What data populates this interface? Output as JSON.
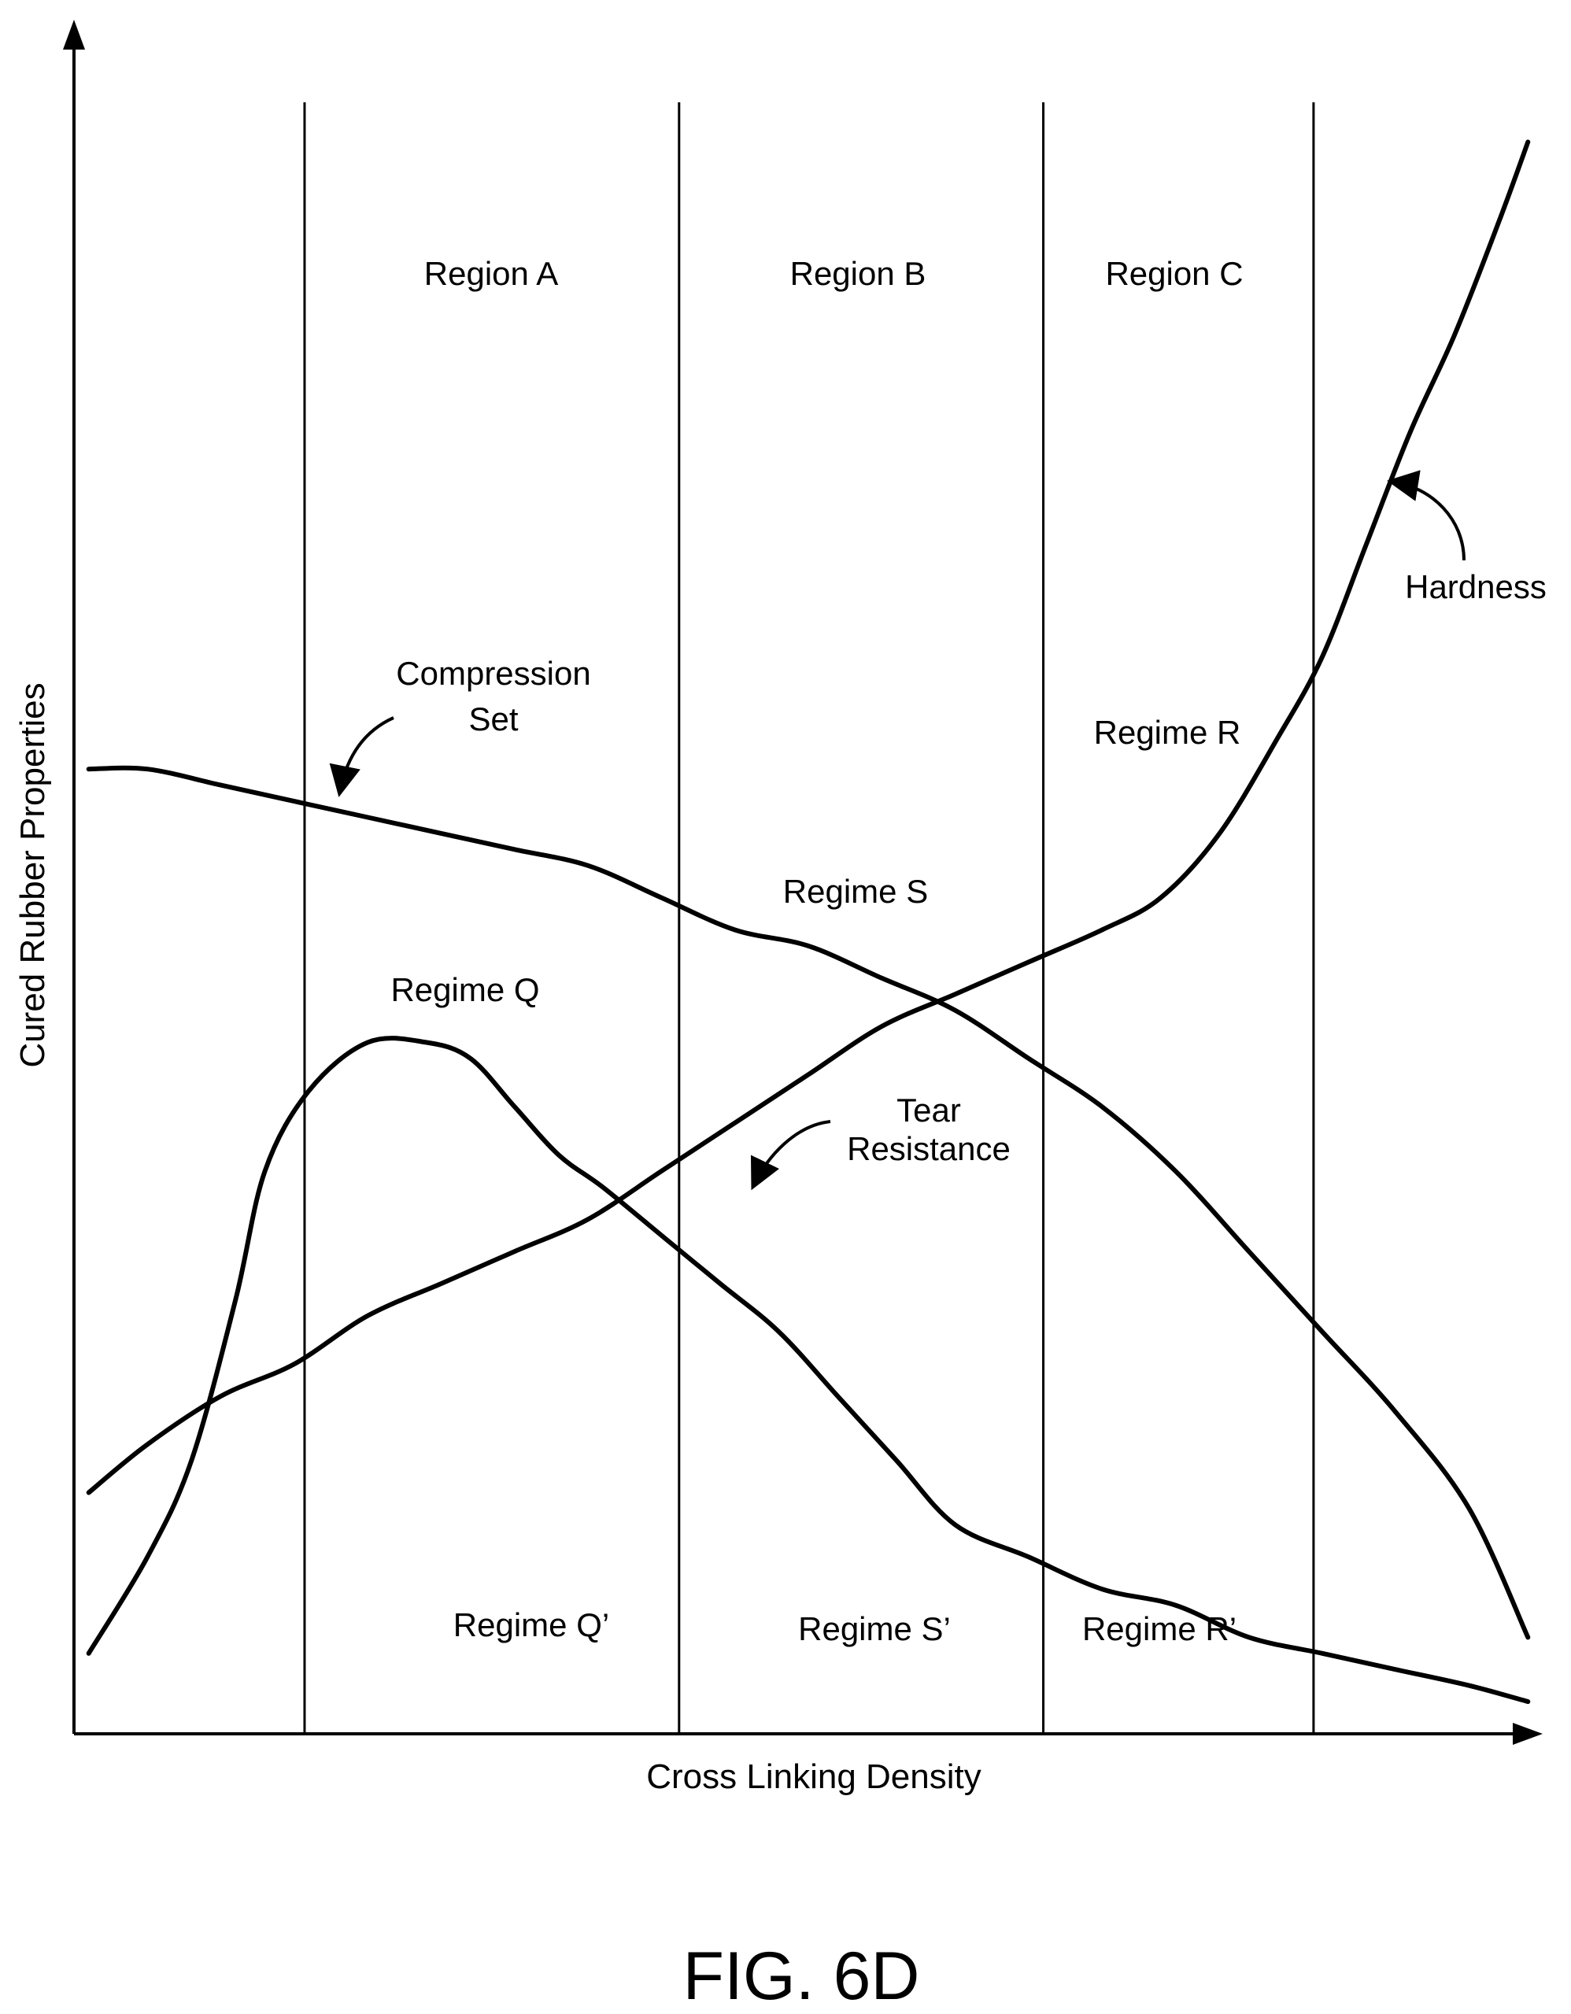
{
  "figure_caption": "FIG. 6D",
  "chart_data": {
    "type": "line",
    "xlabel": "Cross Linking Density",
    "ylabel": "Cured Rubber Properties",
    "region_labels": [
      "Region A",
      "Region B",
      "Region C"
    ],
    "regime_labels_upper": [
      "Regime Q",
      "Regime S",
      "Regime R"
    ],
    "regime_labels_lower": [
      "Regime Q’",
      "Regime S’",
      "Regime R’"
    ],
    "series": [
      {
        "name": "Compression Set",
        "name_lines": [
          "Compression",
          "Set"
        ],
        "x": [
          0.01,
          0.05,
          0.1,
          0.15,
          0.2,
          0.25,
          0.3,
          0.35,
          0.4,
          0.45,
          0.5,
          0.55,
          0.6,
          0.65,
          0.7,
          0.75,
          0.8,
          0.85,
          0.9,
          0.95,
          0.99
        ],
        "y": [
          0.6,
          0.6,
          0.59,
          0.58,
          0.57,
          0.56,
          0.55,
          0.54,
          0.52,
          0.5,
          0.49,
          0.47,
          0.45,
          0.42,
          0.39,
          0.35,
          0.3,
          0.25,
          0.2,
          0.14,
          0.06
        ]
      },
      {
        "name": "Tear Resistance",
        "name_lines": [
          "Tear",
          "Resistance"
        ],
        "x": [
          0.01,
          0.05,
          0.08,
          0.11,
          0.13,
          0.16,
          0.2,
          0.24,
          0.27,
          0.3,
          0.33,
          0.36,
          0.4,
          0.44,
          0.48,
          0.52,
          0.56,
          0.6,
          0.65,
          0.7,
          0.75,
          0.8,
          0.85,
          0.9,
          0.95,
          0.99
        ],
        "y": [
          0.05,
          0.11,
          0.17,
          0.27,
          0.35,
          0.4,
          0.43,
          0.43,
          0.42,
          0.39,
          0.36,
          0.34,
          0.31,
          0.28,
          0.25,
          0.21,
          0.17,
          0.13,
          0.11,
          0.09,
          0.08,
          0.06,
          0.05,
          0.04,
          0.03,
          0.02
        ]
      },
      {
        "name": "Hardness",
        "name_lines": [
          "Hardness"
        ],
        "x": [
          0.01,
          0.05,
          0.1,
          0.15,
          0.2,
          0.25,
          0.3,
          0.35,
          0.4,
          0.45,
          0.5,
          0.55,
          0.6,
          0.65,
          0.7,
          0.74,
          0.78,
          0.82,
          0.85,
          0.88,
          0.91,
          0.94,
          0.97,
          0.99
        ],
        "y": [
          0.15,
          0.18,
          0.21,
          0.23,
          0.26,
          0.28,
          0.3,
          0.32,
          0.35,
          0.38,
          0.41,
          0.44,
          0.46,
          0.48,
          0.5,
          0.52,
          0.56,
          0.62,
          0.67,
          0.74,
          0.81,
          0.87,
          0.94,
          0.99
        ]
      }
    ],
    "xlim": [
      0,
      1
    ],
    "ylim": [
      0,
      1
    ],
    "region_boundaries_x": [
      0.157,
      0.412,
      0.66,
      0.844
    ],
    "grid": false,
    "legend": "none"
  }
}
